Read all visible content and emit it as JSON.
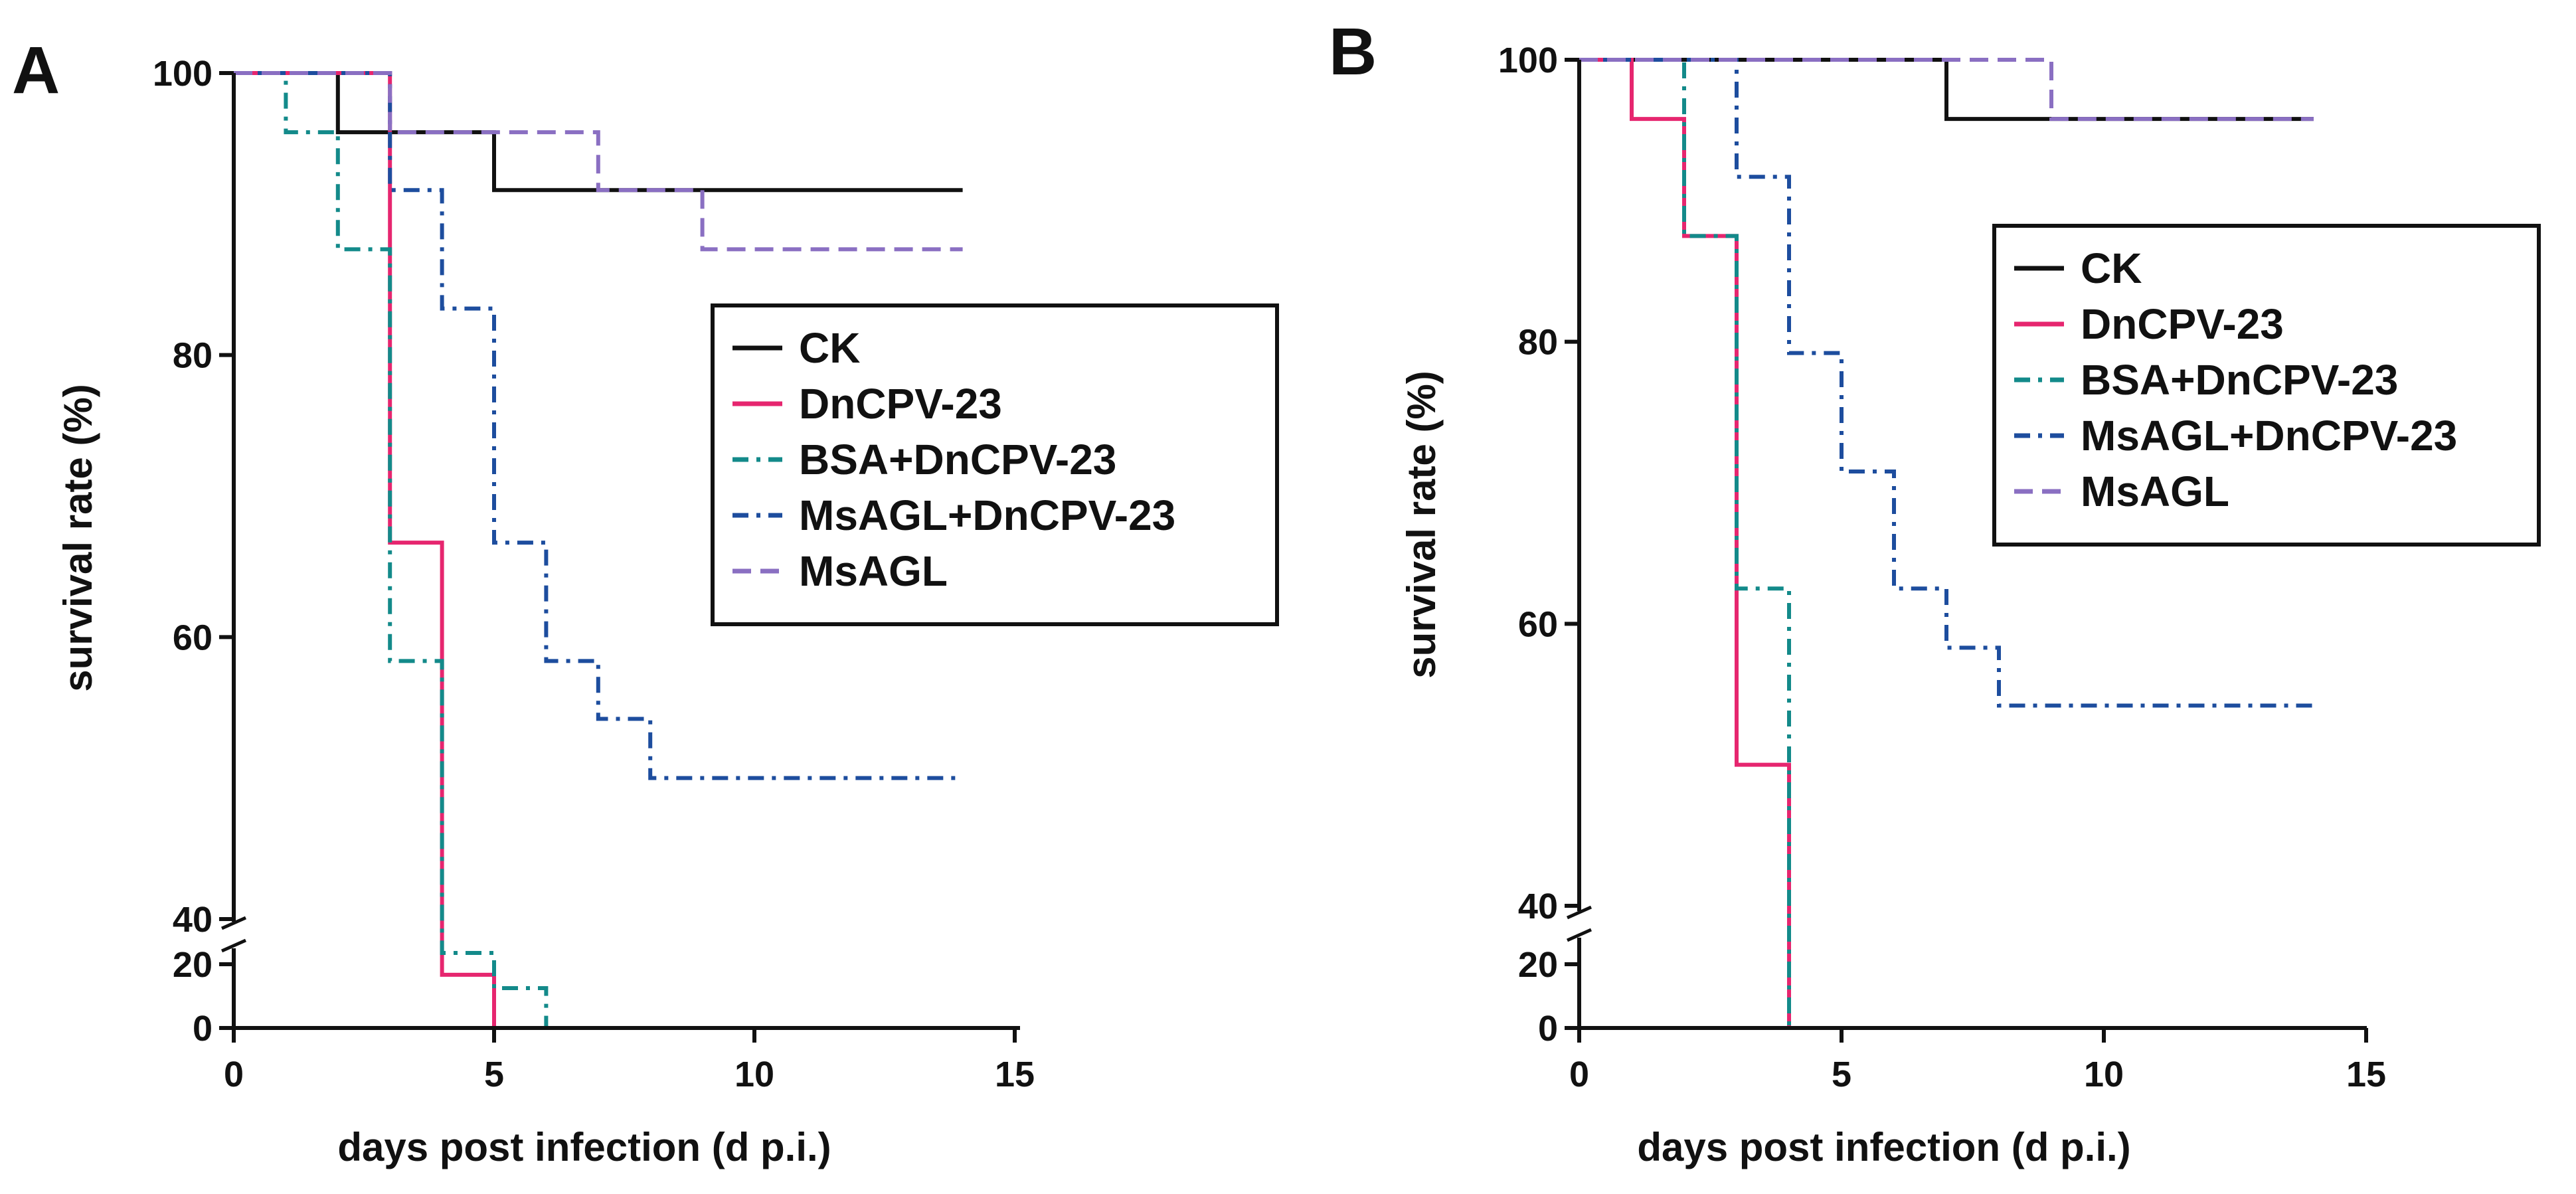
{
  "chart_data": [
    {
      "type": "line",
      "step": true,
      "panel_label": "A",
      "xlabel": "days post infection (d p.i.)",
      "ylabel": "survival rate (%)",
      "xlim": [
        0,
        15
      ],
      "x_ticks": [
        0,
        5,
        10,
        15
      ],
      "y_axis_break": {
        "lower_range": [
          0,
          20
        ],
        "upper_range": [
          40,
          100
        ]
      },
      "y_ticks": [
        0,
        20,
        40,
        60,
        80,
        100
      ],
      "legend": {
        "position": "center-right",
        "entries": [
          "CK",
          "DnCPV-23",
          "BSA+DnCPV-23",
          "MsAGL+DnCPV-23",
          "MsAGL"
        ]
      },
      "series": [
        {
          "name": "CK",
          "color": "#111111",
          "dash": "solid",
          "points": [
            [
              0,
              100
            ],
            [
              2,
              95.8
            ],
            [
              5,
              91.7
            ],
            [
              14,
              91.7
            ]
          ]
        },
        {
          "name": "DnCPV-23",
          "color": "#e6266f",
          "dash": "solid",
          "points": [
            [
              0,
              100
            ],
            [
              3,
              66.7
            ],
            [
              4,
              16.7
            ],
            [
              5,
              0
            ]
          ]
        },
        {
          "name": "BSA+DnCPV-23",
          "color": "#138a8a",
          "dash": "dashdot",
          "points": [
            [
              0,
              100
            ],
            [
              1,
              95.8
            ],
            [
              2,
              87.5
            ],
            [
              3,
              58.3
            ],
            [
              4,
              25
            ],
            [
              5,
              12.5
            ],
            [
              6,
              0
            ]
          ]
        },
        {
          "name": "MsAGL+DnCPV-23",
          "color": "#1d4d9e",
          "dash": "dashdot",
          "points": [
            [
              0,
              100
            ],
            [
              3,
              91.7
            ],
            [
              4,
              83.3
            ],
            [
              5,
              66.7
            ],
            [
              6,
              58.3
            ],
            [
              7,
              54.2
            ],
            [
              8,
              50
            ],
            [
              14,
              50
            ]
          ]
        },
        {
          "name": "MsAGL",
          "color": "#8a6fc2",
          "dash": "dashed",
          "points": [
            [
              0,
              100
            ],
            [
              3,
              95.8
            ],
            [
              7,
              91.7
            ],
            [
              9,
              87.5
            ],
            [
              14,
              87.5
            ]
          ]
        }
      ]
    },
    {
      "type": "line",
      "step": true,
      "panel_label": "B",
      "xlabel": "days post infection (d p.i.)",
      "ylabel": "survival rate (%)",
      "xlim": [
        0,
        15
      ],
      "x_ticks": [
        0,
        5,
        10,
        15
      ],
      "y_axis_break": {
        "lower_range": [
          0,
          20
        ],
        "upper_range": [
          40,
          100
        ]
      },
      "y_ticks": [
        0,
        20,
        40,
        60,
        80,
        100
      ],
      "legend": {
        "position": "center-right",
        "entries": [
          "CK",
          "DnCPV-23",
          "BSA+DnCPV-23",
          "MsAGL+DnCPV-23",
          "MsAGL"
        ]
      },
      "series": [
        {
          "name": "CK",
          "color": "#111111",
          "dash": "solid",
          "points": [
            [
              0,
              100
            ],
            [
              7,
              95.8
            ],
            [
              14,
              95.8
            ]
          ]
        },
        {
          "name": "DnCPV-23",
          "color": "#e6266f",
          "dash": "solid",
          "points": [
            [
              0,
              100
            ],
            [
              1,
              95.8
            ],
            [
              2,
              87.5
            ],
            [
              3,
              50
            ],
            [
              4,
              0
            ]
          ]
        },
        {
          "name": "BSA+DnCPV-23",
          "color": "#138a8a",
          "dash": "dashdot",
          "points": [
            [
              0,
              100
            ],
            [
              2,
              87.5
            ],
            [
              3,
              62.5
            ],
            [
              4,
              0
            ]
          ]
        },
        {
          "name": "MsAGL+DnCPV-23",
          "color": "#1d4d9e",
          "dash": "dashdot",
          "points": [
            [
              0,
              100
            ],
            [
              3,
              91.7
            ],
            [
              4,
              79.2
            ],
            [
              5,
              70.8
            ],
            [
              6,
              62.5
            ],
            [
              7,
              58.3
            ],
            [
              8,
              54.2
            ],
            [
              14,
              54.2
            ]
          ]
        },
        {
          "name": "MsAGL",
          "color": "#8a6fc2",
          "dash": "dashed",
          "points": [
            [
              0,
              100
            ],
            [
              9,
              95.8
            ],
            [
              14,
              95.8
            ]
          ]
        }
      ]
    }
  ]
}
